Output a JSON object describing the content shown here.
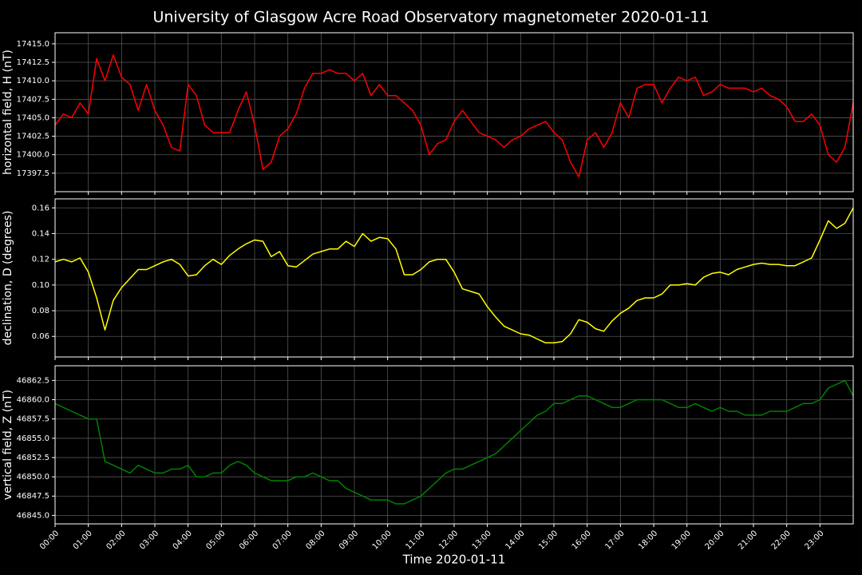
{
  "title": "University of Glasgow Acre Road Observatory magnetometer 2020-01-11",
  "xlabel": "Time 2020-01-11",
  "x": [
    0,
    0.25,
    0.5,
    0.75,
    1,
    1.25,
    1.5,
    1.75,
    2,
    2.25,
    2.5,
    2.75,
    3,
    3.25,
    3.5,
    3.75,
    4,
    4.25,
    4.5,
    4.75,
    5,
    5.25,
    5.5,
    5.75,
    6,
    6.25,
    6.5,
    6.75,
    7,
    7.25,
    7.5,
    7.75,
    8,
    8.25,
    8.5,
    8.75,
    9,
    9.25,
    9.5,
    9.75,
    10,
    10.25,
    10.5,
    10.75,
    11,
    11.25,
    11.5,
    11.75,
    12,
    12.25,
    12.5,
    12.75,
    13,
    13.25,
    13.5,
    13.75,
    14,
    14.25,
    14.5,
    14.75,
    15,
    15.25,
    15.5,
    15.75,
    16,
    16.25,
    16.5,
    16.75,
    17,
    17.25,
    17.5,
    17.75,
    18,
    18.25,
    18.5,
    18.75,
    19,
    19.25,
    19.5,
    19.75,
    20,
    20.25,
    20.5,
    20.75,
    21,
    21.25,
    21.5,
    21.75,
    22,
    22.25,
    22.5,
    22.75,
    23,
    23.25,
    23.5,
    23.75,
    24
  ],
  "xlim": [
    0,
    24
  ],
  "xticks": [
    {
      "value": 0,
      "label": "00:00"
    },
    {
      "value": 1,
      "label": "01:00"
    },
    {
      "value": 2,
      "label": "02:00"
    },
    {
      "value": 3,
      "label": "03:00"
    },
    {
      "value": 4,
      "label": "04:00"
    },
    {
      "value": 5,
      "label": "05:00"
    },
    {
      "value": 6,
      "label": "06:00"
    },
    {
      "value": 7,
      "label": "07:00"
    },
    {
      "value": 8,
      "label": "08:00"
    },
    {
      "value": 9,
      "label": "09:00"
    },
    {
      "value": 10,
      "label": "10:00"
    },
    {
      "value": 11,
      "label": "11:00"
    },
    {
      "value": 12,
      "label": "12:00"
    },
    {
      "value": 13,
      "label": "13:00"
    },
    {
      "value": 14,
      "label": "14:00"
    },
    {
      "value": 15,
      "label": "15:00"
    },
    {
      "value": 16,
      "label": "16:00"
    },
    {
      "value": 17,
      "label": "17:00"
    },
    {
      "value": 18,
      "label": "18:00"
    },
    {
      "value": 19,
      "label": "19:00"
    },
    {
      "value": 20,
      "label": "20:00"
    },
    {
      "value": 21,
      "label": "21:00"
    },
    {
      "value": 22,
      "label": "22:00"
    },
    {
      "value": 23,
      "label": "23:00"
    }
  ],
  "chart_data": [
    {
      "type": "line",
      "ylabel": "horizontal field, H (nT)",
      "color": "#ff0000",
      "grid": true,
      "ylim": [
        17395.0,
        17416.5
      ],
      "yticks": [
        17397.5,
        {
          "value": 17400,
          "label": "17400.0"
        },
        17402.5,
        {
          "value": 17405,
          "label": "17405.0"
        },
        17407.5,
        {
          "value": 17410,
          "label": "17410.0"
        },
        17412.5,
        {
          "value": 17415,
          "label": "17415.0"
        }
      ],
      "values": [
        17404,
        17405.5,
        17405,
        17407,
        17405.5,
        17413,
        17410,
        17413.5,
        17410.5,
        17409.5,
        17406,
        17409.5,
        17406,
        17404,
        17401,
        17400.5,
        17409.5,
        17408,
        17404,
        17403,
        17403,
        17403,
        17406,
        17408.5,
        17404,
        17398,
        17399,
        17402.5,
        17403.5,
        17405.5,
        17409,
        17411,
        17411,
        17411.5,
        17411,
        17411,
        17410,
        17411,
        17408,
        17409.5,
        17408,
        17408,
        17407,
        17406,
        17404,
        17400,
        17401.5,
        17402,
        17404.5,
        17406,
        17404.5,
        17403,
        17402.5,
        17402,
        17401,
        17402,
        17402.5,
        17403.5,
        17404,
        17404.5,
        17403,
        17402,
        17399,
        17397,
        17402,
        17403,
        17401,
        17403,
        17407,
        17405,
        17409,
        17409.5,
        17409.5,
        17407,
        17409,
        17410.5,
        17410,
        17410.5,
        17408,
        17408.5,
        17409.5,
        17409,
        17409,
        17409,
        17408.5,
        17409,
        17408,
        17407.5,
        17406.5,
        17404.5,
        17404.5,
        17405.5,
        17404,
        17400,
        17399,
        17401,
        17407
      ]
    },
    {
      "type": "line",
      "ylabel": "declination, D (degrees)",
      "color": "#ffff00",
      "grid": true,
      "ylim": [
        0.044,
        0.167
      ],
      "yticks": [
        0.06,
        0.08,
        {
          "value": 0.1,
          "label": "0.10"
        },
        0.12,
        0.14,
        0.16
      ],
      "values": [
        0.118,
        0.12,
        0.118,
        0.121,
        0.11,
        0.09,
        0.065,
        0.088,
        0.098,
        0.105,
        0.112,
        0.112,
        0.115,
        0.118,
        0.12,
        0.116,
        0.107,
        0.108,
        0.115,
        0.12,
        0.116,
        0.123,
        0.128,
        0.132,
        0.135,
        0.134,
        0.122,
        0.126,
        0.115,
        0.114,
        0.119,
        0.124,
        0.126,
        0.128,
        0.128,
        0.134,
        0.13,
        0.14,
        0.134,
        0.137,
        0.136,
        0.128,
        0.108,
        0.108,
        0.112,
        0.118,
        0.12,
        0.12,
        0.11,
        0.097,
        0.095,
        0.093,
        0.083,
        0.075,
        0.068,
        0.065,
        0.062,
        0.061,
        0.058,
        0.055,
        0.055,
        0.056,
        0.062,
        0.073,
        0.071,
        0.066,
        0.064,
        0.072,
        0.078,
        0.082,
        0.088,
        0.09,
        0.09,
        0.093,
        0.1,
        0.1,
        0.101,
        0.1,
        0.106,
        0.109,
        0.11,
        0.108,
        0.112,
        0.114,
        0.116,
        0.117,
        0.116,
        0.116,
        0.115,
        0.115,
        0.118,
        0.121,
        0.135,
        0.15,
        0.144,
        0.148,
        0.16
      ]
    },
    {
      "type": "line",
      "ylabel": "vertical field, Z (nT)",
      "color": "#008000",
      "grid": true,
      "ylim": [
        46843.9,
        46864.4
      ],
      "yticks": [
        {
          "value": 46845,
          "label": "46845.0"
        },
        46847.5,
        {
          "value": 46850,
          "label": "46850.0"
        },
        46852.5,
        {
          "value": 46855,
          "label": "46855.0"
        },
        46857.5,
        {
          "value": 46860,
          "label": "46860.0"
        },
        46862.5
      ],
      "values": [
        46859.5,
        46859,
        46858.5,
        46858,
        46857.5,
        46857.5,
        46852,
        46851.5,
        46851,
        46850.5,
        46851.5,
        46851,
        46850.5,
        46850.5,
        46851,
        46851,
        46851.5,
        46850,
        46850,
        46850.5,
        46850.5,
        46851.5,
        46852,
        46851.5,
        46850.5,
        46850,
        46849.5,
        46849.5,
        46849.5,
        46850,
        46850,
        46850.5,
        46850,
        46849.5,
        46849.5,
        46848.5,
        46848,
        46847.5,
        46847,
        46847,
        46847,
        46846.5,
        46846.5,
        46847,
        46847.5,
        46848.5,
        46849.5,
        46850.5,
        46851,
        46851,
        46851.5,
        46852,
        46852.5,
        46853,
        46854,
        46855,
        46856,
        46857,
        46858,
        46858.5,
        46859.5,
        46859.5,
        46860,
        46860.5,
        46860.5,
        46860,
        46859.5,
        46859,
        46859,
        46859.5,
        46860,
        46860,
        46860,
        46860,
        46859.5,
        46859,
        46859,
        46859.5,
        46859,
        46858.5,
        46859,
        46858.5,
        46858.5,
        46858,
        46858,
        46858,
        46858.5,
        46858.5,
        46858.5,
        46859,
        46859.5,
        46859.5,
        46860,
        46861.5,
        46862,
        46862.5,
        46860.5
      ]
    }
  ]
}
